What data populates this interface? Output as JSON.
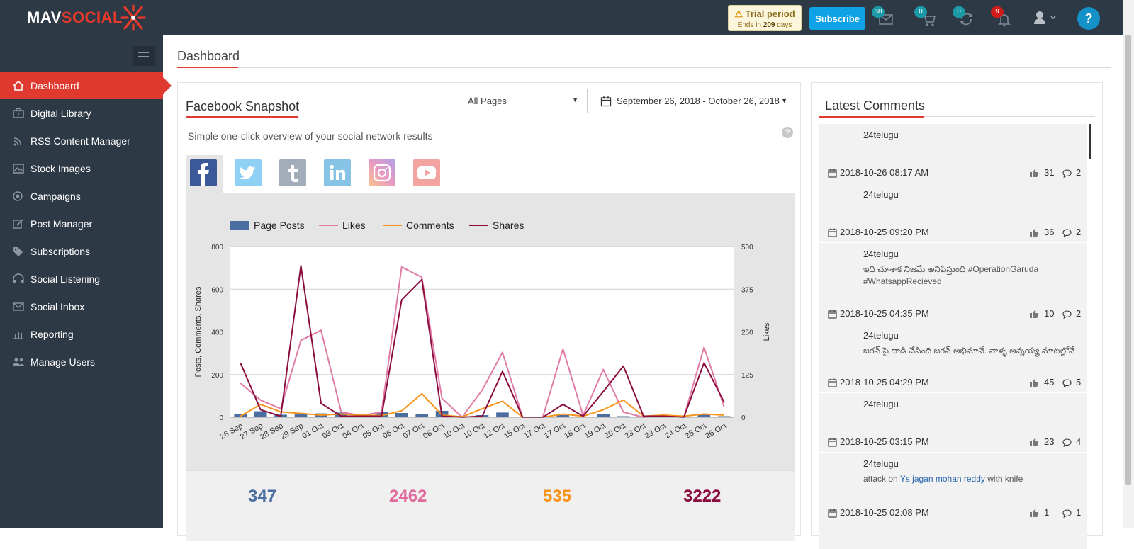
{
  "header": {
    "logo_mav": "MAV",
    "logo_social": "SOCIAL",
    "trial_title": "Trial period",
    "trial_ends_prefix": "Ends in",
    "trial_days": "209",
    "trial_days_suffix": "days",
    "subscribe_label": "Subscribe",
    "badges": {
      "messages": "68",
      "cart": "0",
      "sync": "0",
      "notifications": "9"
    },
    "help_label": "?"
  },
  "sidebar": {
    "items": [
      {
        "label": "Dashboard",
        "icon": "home-icon"
      },
      {
        "label": "Digital Library",
        "icon": "briefcase-icon"
      },
      {
        "label": "RSS Content Manager",
        "icon": "rss-icon"
      },
      {
        "label": "Stock Images",
        "icon": "image-icon"
      },
      {
        "label": "Campaigns",
        "icon": "target-icon"
      },
      {
        "label": "Post Manager",
        "icon": "edit-icon"
      },
      {
        "label": "Subscriptions",
        "icon": "tag-icon"
      },
      {
        "label": "Social Listening",
        "icon": "headphones-icon"
      },
      {
        "label": "Social Inbox",
        "icon": "envelope-icon"
      },
      {
        "label": "Reporting",
        "icon": "bar-chart-icon"
      },
      {
        "label": "Manage Users",
        "icon": "users-icon"
      }
    ]
  },
  "main": {
    "title": "Dashboard"
  },
  "facebook": {
    "title": "Facebook Snapshot",
    "pages_select": "All Pages",
    "date_range": "September 26, 2018 - October 26, 2018",
    "description": "Simple one-click overview of your social network results",
    "networks": [
      {
        "name": "facebook",
        "glyph": "f",
        "color": "#3b5998"
      },
      {
        "name": "twitter",
        "glyph": "t",
        "color": "#8fd0f5"
      },
      {
        "name": "tumblr",
        "glyph": "t",
        "color": "#a3adb9"
      },
      {
        "name": "linkedin",
        "glyph": "in",
        "color": "#86c3e4"
      },
      {
        "name": "instagram",
        "glyph": "ig",
        "color": "#e9a7c8"
      },
      {
        "name": "youtube",
        "glyph": "yt",
        "color": "#f3a3a0"
      }
    ],
    "stats": {
      "posts": {
        "value": "347",
        "color": "#4a6ea1"
      },
      "likes": {
        "value": "2462",
        "color": "#e06b9e"
      },
      "comments": {
        "value": "535",
        "color": "#f7941d"
      },
      "shares": {
        "value": "3222",
        "color": "#8b0c3f"
      }
    }
  },
  "chart_data": {
    "type": "bar",
    "categories": [
      "26 Sep",
      "27 Sep",
      "28 Sep",
      "29 Sep",
      "01 Oct",
      "03 Oct",
      "04 Oct",
      "05 Oct",
      "06 Oct",
      "07 Oct",
      "08 Oct",
      "10 Oct",
      "10 Oct",
      "12 Oct",
      "15 Oct",
      "17 Oct",
      "17 Oct",
      "18 Oct",
      "19 Oct",
      "20 Oct",
      "23 Oct",
      "23 Oct",
      "24 Oct",
      "25 Oct",
      "26 Oct"
    ],
    "y_left": {
      "label": "Posts, Comments, Shares",
      "min": 0,
      "max": 800,
      "ticks": [
        0,
        200,
        400,
        600,
        800
      ]
    },
    "y_right": {
      "label": "Likes",
      "min": 0,
      "max": 500,
      "ticks": [
        0,
        125,
        250,
        375,
        500
      ]
    },
    "legend_position": "top-left",
    "grid": true,
    "series": [
      {
        "name": "Page Posts",
        "type": "bar",
        "axis": "left",
        "color": "#4a6ea1",
        "values": [
          15,
          28,
          12,
          15,
          18,
          22,
          5,
          25,
          20,
          16,
          30,
          3,
          10,
          22,
          2,
          3,
          10,
          2,
          15,
          5,
          5,
          5,
          2,
          12,
          5
        ]
      },
      {
        "name": "Likes",
        "type": "line",
        "axis": "right",
        "color": "#e07aa6",
        "values": [
          100,
          50,
          25,
          225,
          255,
          15,
          5,
          15,
          440,
          410,
          55,
          0,
          80,
          190,
          0,
          0,
          200,
          5,
          140,
          15,
          0,
          5,
          0,
          205,
          30
        ]
      },
      {
        "name": "Comments",
        "type": "line",
        "axis": "left",
        "color": "#f7941d",
        "values": [
          5,
          60,
          25,
          18,
          10,
          15,
          10,
          8,
          30,
          110,
          10,
          2,
          40,
          75,
          0,
          0,
          15,
          5,
          35,
          80,
          5,
          10,
          5,
          15,
          10
        ]
      },
      {
        "name": "Shares",
        "type": "line",
        "axis": "left",
        "color": "#8b0c3f",
        "values": [
          255,
          35,
          5,
          710,
          65,
          5,
          5,
          5,
          550,
          645,
          5,
          0,
          5,
          215,
          0,
          0,
          60,
          5,
          120,
          240,
          5,
          5,
          0,
          255,
          70
        ]
      }
    ]
  },
  "comments": {
    "title": "Latest Comments",
    "items": [
      {
        "user": "24telugu",
        "text": "",
        "date": "2018-10-26 08:17 AM",
        "likes": "31",
        "comments": "2"
      },
      {
        "user": "24telugu",
        "text": "",
        "date": "2018-10-25 09:20 PM",
        "likes": "36",
        "comments": "2"
      },
      {
        "user": "24telugu",
        "text": "ఇది చూశాక నిజమే అనిపిస్తుంది #OperationGaruda #WhatsappRecieved",
        "date": "2018-10-25 04:35 PM",
        "likes": "10",
        "comments": "2"
      },
      {
        "user": "24telugu",
        "text": "జగన్ పై దాడి చేసింది జగన్ అభిమానే. వాళ్ళ అన్నయ్య మాటల్లోనే",
        "date": "2018-10-25 04:29 PM",
        "likes": "45",
        "comments": "5"
      },
      {
        "user": "24telugu",
        "text": "",
        "date": "2018-10-25 03:15 PM",
        "likes": "23",
        "comments": "4"
      },
      {
        "user": "24telugu",
        "text_pre": "attack on ",
        "text_link": "Ys jagan mohan reddy",
        "text_post": " with knife",
        "date": "2018-10-25 02:08 PM",
        "likes": "1",
        "comments": "1"
      }
    ]
  }
}
